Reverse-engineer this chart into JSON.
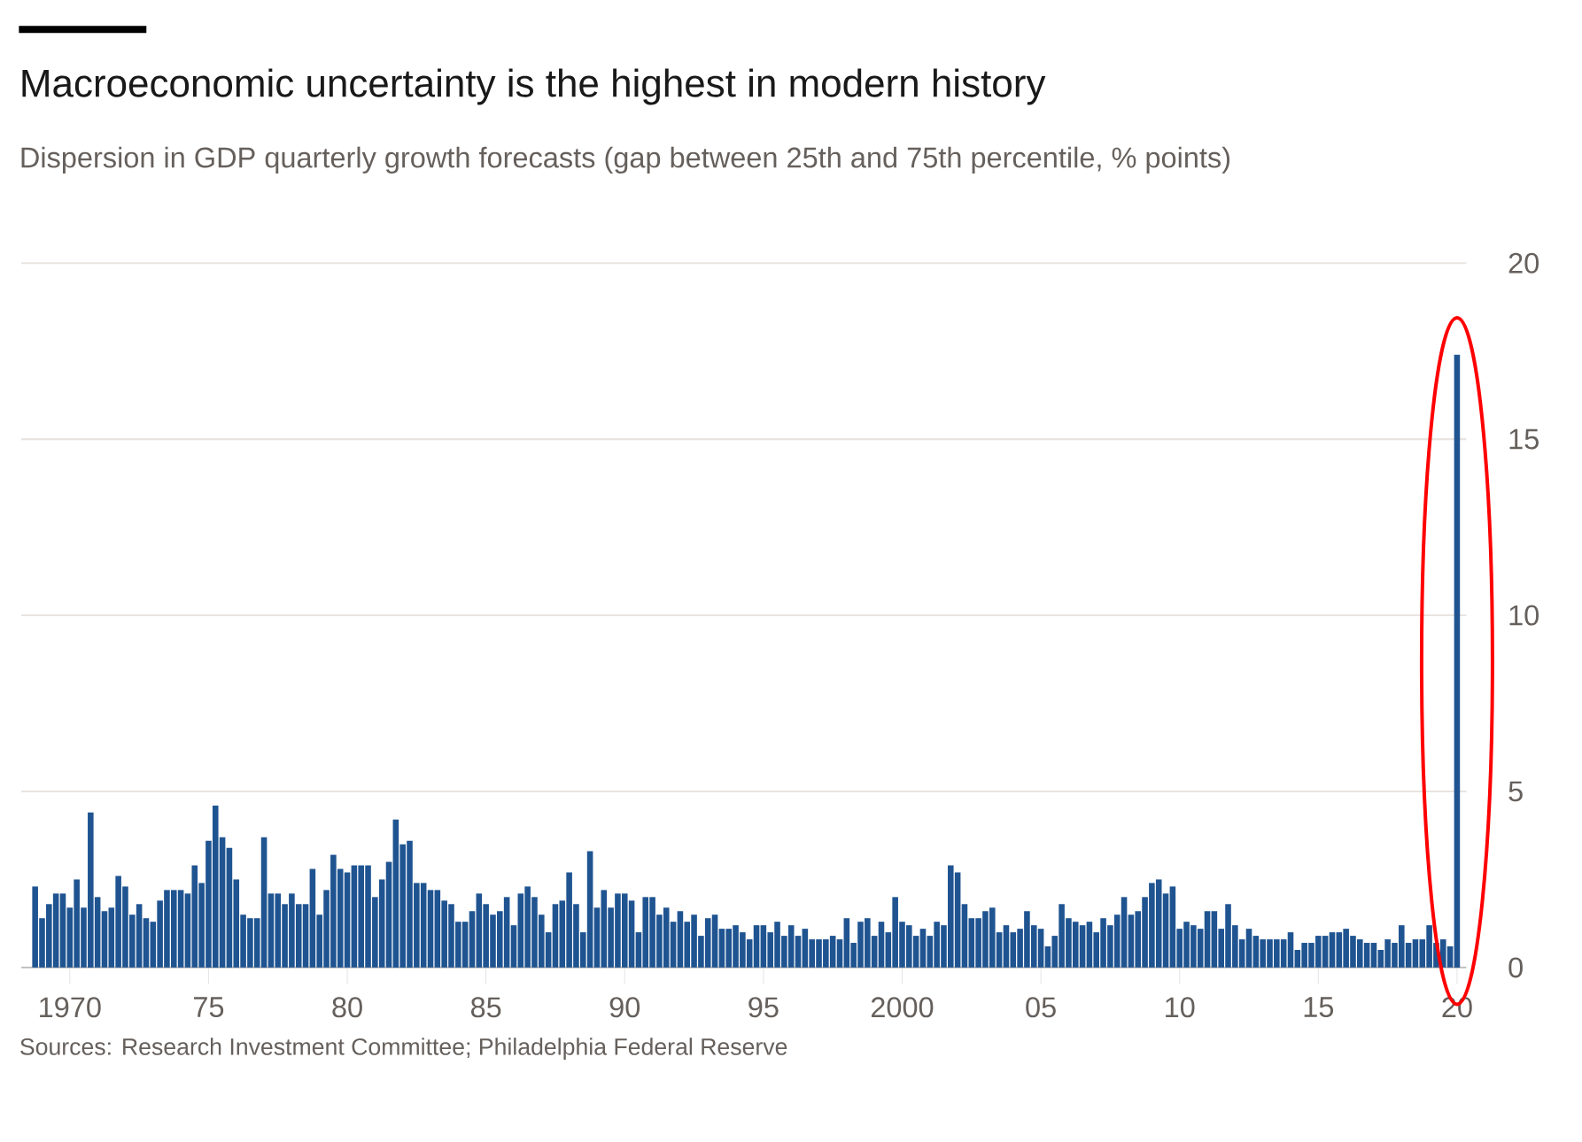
{
  "chart_data": {
    "type": "bar",
    "title": "Macroeconomic uncertainty is the highest in modern history",
    "subtitle": "Dispersion in GDP quarterly growth forecasts (gap between 25th and 75th percentile, % points)",
    "annotations": [
      "Sources: Research Investment Committee; Philadelphia Federal Reserve"
    ],
    "x": [
      "1968-10",
      "1969-01",
      "1969-04",
      "1969-07",
      "1969-10",
      "1970-01",
      "1970-04",
      "1970-07",
      "1970-10",
      "1971-01",
      "1971-04",
      "1971-07",
      "1971-10",
      "1972-01",
      "1972-04",
      "1972-07",
      "1972-10",
      "1973-01",
      "1973-04",
      "1973-07",
      "1973-10",
      "1974-01",
      "1974-04",
      "1974-07",
      "1974-10",
      "1975-01",
      "1975-04",
      "1975-07",
      "1975-10",
      "1976-01",
      "1976-04",
      "1976-07",
      "1976-10",
      "1977-01",
      "1977-04",
      "1977-07",
      "1977-10",
      "1978-01",
      "1978-04",
      "1978-07",
      "1978-10",
      "1979-01",
      "1979-04",
      "1979-07",
      "1979-10",
      "1980-01",
      "1980-04",
      "1980-07",
      "1980-10",
      "1981-01",
      "1981-04",
      "1981-07",
      "1981-10",
      "1982-01",
      "1982-04",
      "1982-07",
      "1982-10",
      "1983-01",
      "1983-04",
      "1983-07",
      "1983-10",
      "1984-01",
      "1984-04",
      "1984-07",
      "1984-10",
      "1985-01",
      "1985-04",
      "1985-07",
      "1985-10",
      "1986-01",
      "1986-04",
      "1986-07",
      "1986-10",
      "1987-01",
      "1987-04",
      "1987-07",
      "1987-10",
      "1988-01",
      "1988-04",
      "1988-07",
      "1988-10",
      "1989-01",
      "1989-04",
      "1989-07",
      "1989-10",
      "1990-01",
      "1990-04",
      "1990-07",
      "1990-10",
      "1991-01",
      "1991-04",
      "1991-07",
      "1991-10",
      "1992-01",
      "1992-04",
      "1992-07",
      "1992-10",
      "1993-01",
      "1993-04",
      "1993-07",
      "1993-10",
      "1994-01",
      "1994-04",
      "1994-07",
      "1994-10",
      "1995-01",
      "1995-04",
      "1995-07",
      "1995-10",
      "1996-01",
      "1996-04",
      "1996-07",
      "1996-10",
      "1997-01",
      "1997-04",
      "1997-07",
      "1997-10",
      "1998-01",
      "1998-04",
      "1998-07",
      "1998-10",
      "1999-01",
      "1999-04",
      "1999-07",
      "1999-10",
      "2000-01",
      "2000-04",
      "2000-07",
      "2000-10",
      "2001-01",
      "2001-04",
      "2001-07",
      "2001-10",
      "2002-01",
      "2002-04",
      "2002-07",
      "2002-10",
      "2003-01",
      "2003-04",
      "2003-07",
      "2003-10",
      "2004-01",
      "2004-04",
      "2004-07",
      "2004-10",
      "2005-01",
      "2005-04",
      "2005-07",
      "2005-10",
      "2006-01",
      "2006-04",
      "2006-07",
      "2006-10",
      "2007-01",
      "2007-04",
      "2007-07",
      "2007-10",
      "2008-01",
      "2008-04",
      "2008-07",
      "2008-10",
      "2009-01",
      "2009-04",
      "2009-07",
      "2009-10",
      "2010-01",
      "2010-04",
      "2010-07",
      "2010-10",
      "2011-01",
      "2011-04",
      "2011-07",
      "2011-10",
      "2012-01",
      "2012-04",
      "2012-07",
      "2012-10",
      "2013-01",
      "2013-04",
      "2013-07",
      "2013-10",
      "2014-01",
      "2014-04",
      "2014-07",
      "2014-10",
      "2015-01",
      "2015-04",
      "2015-07",
      "2015-10",
      "2016-01",
      "2016-04",
      "2016-07",
      "2016-10",
      "2017-01",
      "2017-04",
      "2017-07",
      "2017-10",
      "2018-01",
      "2018-04",
      "2018-07",
      "2018-10",
      "2019-01",
      "2019-04",
      "2019-07",
      "2019-10",
      "2020-01"
    ],
    "values": [
      2.3,
      1.4,
      1.8,
      2.1,
      2.1,
      1.7,
      2.5,
      1.7,
      4.4,
      2.0,
      1.6,
      1.7,
      2.6,
      2.3,
      1.5,
      1.8,
      1.4,
      1.3,
      1.9,
      2.2,
      2.2,
      2.2,
      2.1,
      2.9,
      2.4,
      3.6,
      4.6,
      3.7,
      3.4,
      2.5,
      1.5,
      1.4,
      1.4,
      3.7,
      2.1,
      2.1,
      1.8,
      2.1,
      1.8,
      1.8,
      2.8,
      1.5,
      2.2,
      3.2,
      2.8,
      2.7,
      2.9,
      2.9,
      2.9,
      2.0,
      2.5,
      3.0,
      4.2,
      3.5,
      3.6,
      2.4,
      2.4,
      2.2,
      2.2,
      1.9,
      1.8,
      1.3,
      1.3,
      1.6,
      2.1,
      1.8,
      1.5,
      1.6,
      2.0,
      1.2,
      2.1,
      2.3,
      2.0,
      1.5,
      1.0,
      1.8,
      1.9,
      2.7,
      1.8,
      1.0,
      3.3,
      1.7,
      2.2,
      1.7,
      2.1,
      2.1,
      1.9,
      1.0,
      2.0,
      2.0,
      1.5,
      1.7,
      1.3,
      1.6,
      1.3,
      1.5,
      0.9,
      1.4,
      1.5,
      1.1,
      1.1,
      1.2,
      1.0,
      0.8,
      1.2,
      1.2,
      1.0,
      1.3,
      0.9,
      1.2,
      0.9,
      1.1,
      0.8,
      0.8,
      0.8,
      0.9,
      0.8,
      1.4,
      0.7,
      1.3,
      1.4,
      0.9,
      1.3,
      1.0,
      2.0,
      1.3,
      1.2,
      0.9,
      1.1,
      0.9,
      1.3,
      1.2,
      2.9,
      2.7,
      1.8,
      1.4,
      1.4,
      1.6,
      1.7,
      1.0,
      1.2,
      1.0,
      1.1,
      1.6,
      1.2,
      1.1,
      0.6,
      0.9,
      1.8,
      1.4,
      1.3,
      1.2,
      1.3,
      1.0,
      1.4,
      1.2,
      1.5,
      2.0,
      1.5,
      1.6,
      2.0,
      2.4,
      2.5,
      2.1,
      2.3,
      1.1,
      1.3,
      1.2,
      1.1,
      1.6,
      1.6,
      1.1,
      1.8,
      1.2,
      0.8,
      1.1,
      0.9,
      0.8,
      0.8,
      0.8,
      0.8,
      1.0,
      0.5,
      0.7,
      0.7,
      0.9,
      0.9,
      1.0,
      1.0,
      1.1,
      0.9,
      0.8,
      0.7,
      0.7,
      0.5,
      0.8,
      0.7,
      1.2,
      0.7,
      0.8,
      0.8,
      1.2,
      0.7,
      0.8,
      0.6,
      17.4
    ],
    "color": "#1f5491",
    "xlim": [
      "1968-04",
      "2020-05"
    ],
    "xticks": [
      {
        "value": "1970",
        "label": "1970"
      },
      {
        "value": "1975",
        "label": "75"
      },
      {
        "value": "1980",
        "label": "80"
      },
      {
        "value": "1985",
        "label": "85"
      },
      {
        "value": "1990",
        "label": "90"
      },
      {
        "value": "1995",
        "label": "95"
      },
      {
        "value": "2000",
        "label": "2000"
      },
      {
        "value": "2005",
        "label": "05"
      },
      {
        "value": "2010",
        "label": "10"
      },
      {
        "value": "2015",
        "label": "15"
      },
      {
        "value": "2020",
        "label": "20"
      }
    ],
    "ylim": [
      0,
      20
    ],
    "yticks": [
      0,
      5,
      10,
      15,
      20
    ],
    "grid": "y"
  }
}
